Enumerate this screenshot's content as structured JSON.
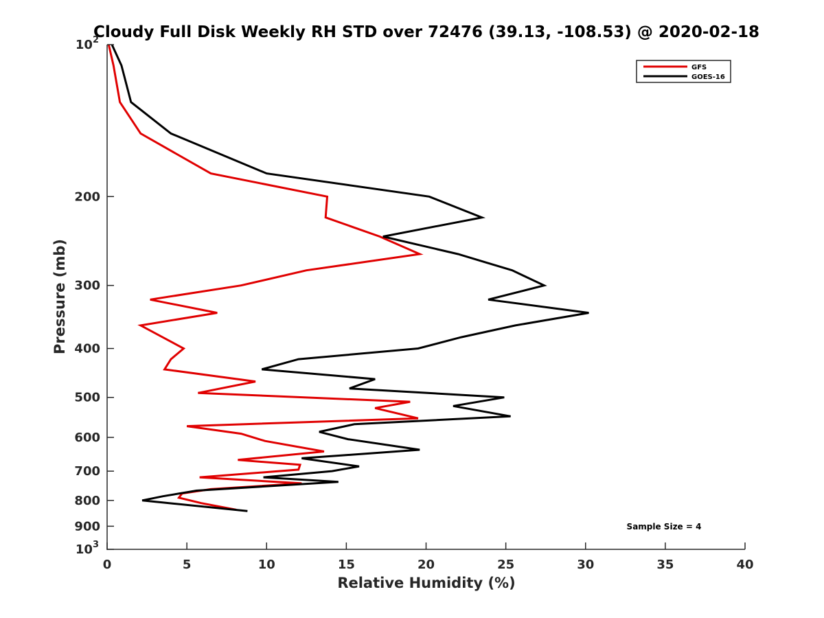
{
  "chart_data": {
    "type": "line",
    "title": "Cloudy Full Disk Weekly RH STD over 72476 (39.13, -108.53) @ 2020-02-18",
    "xlabel": "Relative Humidity (%)",
    "ylabel": "Pressure (mb)",
    "xlim": [
      0,
      40
    ],
    "ylim": [
      100,
      1000
    ],
    "y_scale": "log",
    "y_reversed": true,
    "grid": false,
    "legend_position": "top-right",
    "x_ticks": [
      {
        "value": 0,
        "label": "0"
      },
      {
        "value": 5,
        "label": "5"
      },
      {
        "value": 10,
        "label": "10"
      },
      {
        "value": 15,
        "label": "15"
      },
      {
        "value": 20,
        "label": "20"
      },
      {
        "value": 25,
        "label": "25"
      },
      {
        "value": 30,
        "label": "30"
      },
      {
        "value": 35,
        "label": "35"
      },
      {
        "value": 40,
        "label": "40"
      }
    ],
    "y_ticks": [
      {
        "value": 100,
        "label": "10",
        "sup": "2"
      },
      {
        "value": 200,
        "label": "200",
        "sup": ""
      },
      {
        "value": 300,
        "label": "300",
        "sup": ""
      },
      {
        "value": 400,
        "label": "400",
        "sup": ""
      },
      {
        "value": 500,
        "label": "500",
        "sup": ""
      },
      {
        "value": 600,
        "label": "600",
        "sup": ""
      },
      {
        "value": 700,
        "label": "700",
        "sup": ""
      },
      {
        "value": 800,
        "label": "800",
        "sup": ""
      },
      {
        "value": 900,
        "label": "900",
        "sup": ""
      },
      {
        "value": 1000,
        "label": "10",
        "sup": "3"
      }
    ],
    "annotation": "Sample Size = 4",
    "series": [
      {
        "name": "GFS",
        "color": "#e00000",
        "points": [
          [
            0.1,
            100
          ],
          [
            0.4,
            110
          ],
          [
            0.8,
            130
          ],
          [
            2.1,
            150
          ],
          [
            6.5,
            180
          ],
          [
            13.8,
            200
          ],
          [
            13.7,
            220
          ],
          [
            17.1,
            240
          ],
          [
            19.6,
            260
          ],
          [
            12.5,
            280
          ],
          [
            8.4,
            300
          ],
          [
            2.7,
            320
          ],
          [
            6.9,
            340
          ],
          [
            2.1,
            360
          ],
          [
            4.8,
            400
          ],
          [
            4,
            420
          ],
          [
            3.6,
            440
          ],
          [
            9.3,
            465
          ],
          [
            5.7,
            490
          ],
          [
            19.0,
            510
          ],
          [
            16.8,
            525
          ],
          [
            19.5,
            550
          ],
          [
            5.0,
            570
          ],
          [
            8.4,
            590
          ],
          [
            9.9,
            610
          ],
          [
            13.6,
            640
          ],
          [
            8.2,
            665
          ],
          [
            12.1,
            680
          ],
          [
            12.0,
            695
          ],
          [
            5.8,
            720
          ],
          [
            12.2,
            740
          ],
          [
            6.5,
            760
          ],
          [
            4.7,
            775
          ],
          [
            4.5,
            790
          ],
          [
            5.9,
            810
          ],
          [
            8.1,
            835
          ]
        ]
      },
      {
        "name": "GOES-16",
        "color": "#000000",
        "points": [
          [
            0.3,
            100
          ],
          [
            0.9,
            110
          ],
          [
            1.5,
            130
          ],
          [
            4,
            150
          ],
          [
            10,
            180
          ],
          [
            20.2,
            200
          ],
          [
            23.5,
            220
          ],
          [
            17.3,
            240
          ],
          [
            22,
            260
          ],
          [
            25.4,
            280
          ],
          [
            27.4,
            300
          ],
          [
            23.9,
            320
          ],
          [
            30.2,
            340
          ],
          [
            25.6,
            360
          ],
          [
            22.2,
            380
          ],
          [
            19.5,
            400
          ],
          [
            12,
            420
          ],
          [
            9.7,
            440
          ],
          [
            16.8,
            460
          ],
          [
            15.2,
            480
          ],
          [
            24.9,
            500
          ],
          [
            21.7,
            520
          ],
          [
            25.3,
            545
          ],
          [
            15.5,
            565
          ],
          [
            13.3,
            585
          ],
          [
            15.1,
            605
          ],
          [
            19.6,
            635
          ],
          [
            12.2,
            660
          ],
          [
            15.8,
            685
          ],
          [
            14.1,
            700
          ],
          [
            9.8,
            720
          ],
          [
            14.5,
            735
          ],
          [
            5.6,
            765
          ],
          [
            3.5,
            785
          ],
          [
            2.2,
            800
          ],
          [
            8.8,
            840
          ]
        ]
      }
    ]
  }
}
